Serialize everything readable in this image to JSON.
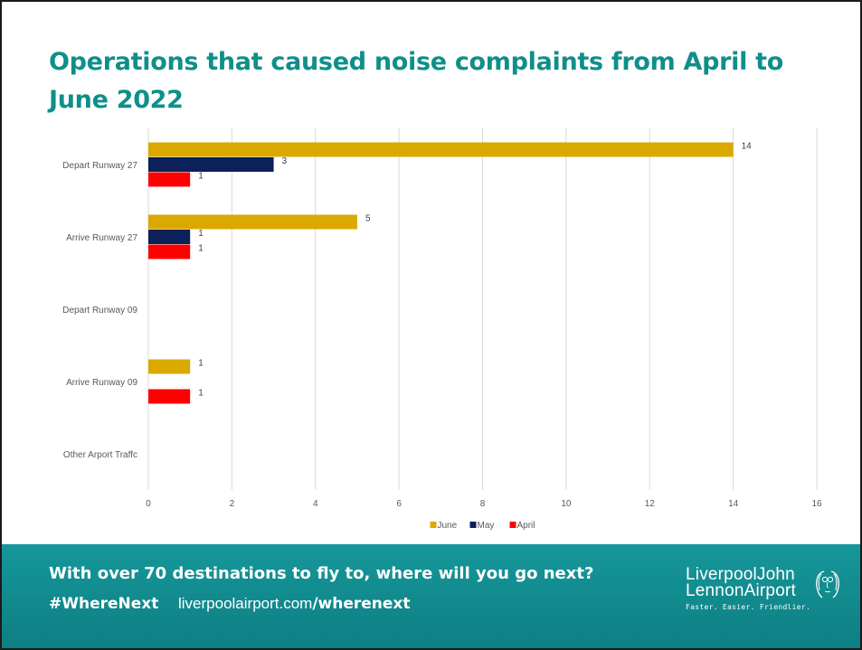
{
  "page": {
    "title": "Operations that caused noise complaints from April to June 2022"
  },
  "chart_data": {
    "type": "bar",
    "orientation": "horizontal",
    "categories": [
      "Depart Runway 27",
      "Arrive Runway 27",
      "Depart Runway 09",
      "Arrive Runway 09",
      "Other Arport Traffc"
    ],
    "series": [
      {
        "name": "June",
        "color": "#dba800",
        "values": [
          14,
          5,
          null,
          1,
          null
        ]
      },
      {
        "name": "May",
        "color": "#0c2059",
        "values": [
          3,
          1,
          null,
          null,
          null
        ]
      },
      {
        "name": "April",
        "color": "#ff0000",
        "values": [
          1,
          1,
          null,
          1,
          null
        ]
      }
    ],
    "xlim": [
      0,
      16
    ],
    "xticks": [
      0,
      2,
      4,
      6,
      8,
      10,
      12,
      14,
      16
    ],
    "grid": true,
    "data_labels": true,
    "legend_position": "bottom"
  },
  "footer": {
    "tagline": "With over 70 destinations to fly to, where will you go next?",
    "hashtag": "#WhereNext",
    "url_base": "liverpoolairport.com",
    "url_path": "/wherenext",
    "logo_line1": "LiverpoolJohn",
    "logo_line2": "LennonAirport",
    "logo_tagline": "Faster. Easier. Friendlier."
  },
  "colors": {
    "title": "#0f8f8a",
    "footer_bg": "#12888c",
    "grid": "#d9d9d9"
  }
}
